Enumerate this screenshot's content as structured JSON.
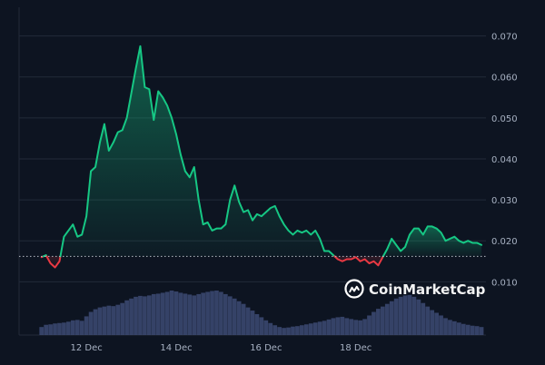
{
  "chart_data": {
    "type": "area",
    "x_ticks": [
      "12 Dec",
      "14 Dec",
      "16 Dec",
      "18 Dec"
    ],
    "y_ticks": [
      0.01,
      0.02,
      0.03,
      0.04,
      0.05,
      0.06,
      0.07
    ],
    "y_tick_labels": [
      "0.010",
      "0.020",
      "0.030",
      "0.040",
      "0.050",
      "0.060",
      "0.070"
    ],
    "ylim": [
      -0.003,
      0.077
    ],
    "xlim": [
      -1.0,
      19.8
    ],
    "baseline": 0.0162,
    "grid": true,
    "axis_side": "right",
    "series": [
      {
        "x": [
          0.0,
          0.2,
          0.4,
          0.6,
          0.8,
          1.0,
          1.2,
          1.4,
          1.6,
          1.8,
          2.0,
          2.2,
          2.4,
          2.6,
          2.8,
          3.0,
          3.2,
          3.4,
          3.6,
          3.8,
          4.0,
          4.2,
          4.4,
          4.6,
          4.8,
          5.0,
          5.2,
          5.4,
          5.6,
          5.8,
          6.0,
          6.2,
          6.4,
          6.6,
          6.8,
          7.0,
          7.2,
          7.4,
          7.6,
          7.8,
          8.0,
          8.2,
          8.4,
          8.6,
          8.8,
          9.0,
          9.2,
          9.4,
          9.6,
          9.8,
          10.0,
          10.2,
          10.4,
          10.6,
          10.8,
          11.0,
          11.2,
          11.4,
          11.6,
          11.8,
          12.0,
          12.2,
          12.4,
          12.6,
          12.8,
          13.0,
          13.2,
          13.4,
          13.6,
          13.8,
          14.0,
          14.2,
          14.4,
          14.6,
          14.8,
          15.0,
          15.2,
          15.4,
          15.6,
          15.8,
          16.0,
          16.2,
          16.4,
          16.6,
          16.8,
          17.0,
          17.2,
          17.4,
          17.6,
          17.8,
          18.0,
          18.2,
          18.4,
          18.6,
          18.8,
          19.0,
          19.2,
          19.4,
          19.6
        ],
        "values": [
          0.016,
          0.0165,
          0.0145,
          0.0135,
          0.015,
          0.021,
          0.0225,
          0.024,
          0.021,
          0.0215,
          0.026,
          0.037,
          0.038,
          0.044,
          0.0485,
          0.042,
          0.044,
          0.0465,
          0.047,
          0.05,
          0.056,
          0.062,
          0.0675,
          0.0575,
          0.057,
          0.0495,
          0.0565,
          0.055,
          0.053,
          0.05,
          0.046,
          0.041,
          0.037,
          0.0355,
          0.038,
          0.03,
          0.024,
          0.0245,
          0.0225,
          0.023,
          0.023,
          0.024,
          0.03,
          0.0335,
          0.0295,
          0.027,
          0.0275,
          0.025,
          0.0265,
          0.026,
          0.027,
          0.028,
          0.0285,
          0.026,
          0.024,
          0.0225,
          0.0215,
          0.0225,
          0.022,
          0.0225,
          0.0215,
          0.0225,
          0.0205,
          0.0175,
          0.0175,
          0.0165,
          0.0155,
          0.015,
          0.0155,
          0.0155,
          0.016,
          0.015,
          0.0155,
          0.0145,
          0.015,
          0.014,
          0.016,
          0.018,
          0.0205,
          0.019,
          0.0175,
          0.0185,
          0.0215,
          0.023,
          0.023,
          0.0215,
          0.0235,
          0.0235,
          0.023,
          0.022,
          0.02,
          0.0205,
          0.021,
          0.02,
          0.0195,
          0.02,
          0.0195,
          0.0195,
          0.019
        ]
      }
    ],
    "volume": [
      0.18,
      0.23,
      0.24,
      0.26,
      0.27,
      0.28,
      0.3,
      0.33,
      0.34,
      0.32,
      0.42,
      0.52,
      0.58,
      0.62,
      0.64,
      0.66,
      0.65,
      0.68,
      0.72,
      0.78,
      0.82,
      0.86,
      0.88,
      0.87,
      0.89,
      0.92,
      0.93,
      0.95,
      0.97,
      1.0,
      0.98,
      0.95,
      0.93,
      0.91,
      0.89,
      0.92,
      0.95,
      0.97,
      0.99,
      1.0,
      0.97,
      0.92,
      0.87,
      0.82,
      0.76,
      0.7,
      0.62,
      0.55,
      0.47,
      0.4,
      0.33,
      0.27,
      0.22,
      0.18,
      0.16,
      0.17,
      0.19,
      0.2,
      0.22,
      0.24,
      0.26,
      0.28,
      0.3,
      0.32,
      0.35,
      0.38,
      0.4,
      0.41,
      0.38,
      0.36,
      0.34,
      0.33,
      0.36,
      0.44,
      0.52,
      0.59,
      0.64,
      0.7,
      0.76,
      0.82,
      0.86,
      0.89,
      0.9,
      0.86,
      0.8,
      0.72,
      0.64,
      0.56,
      0.5,
      0.44,
      0.38,
      0.34,
      0.31,
      0.28,
      0.25,
      0.23,
      0.21,
      0.2,
      0.18
    ],
    "colors": {
      "background": "#0d1421",
      "grid": "#222a39",
      "up_line": "#16c784",
      "down_line": "#ea3943",
      "baseline": "#c9ced6",
      "volume": "#3d4a73",
      "tick_text": "#a7b1c2"
    }
  },
  "watermark": {
    "text": "CoinMarketCap",
    "icon": "coinmarketcap-logo-icon"
  }
}
